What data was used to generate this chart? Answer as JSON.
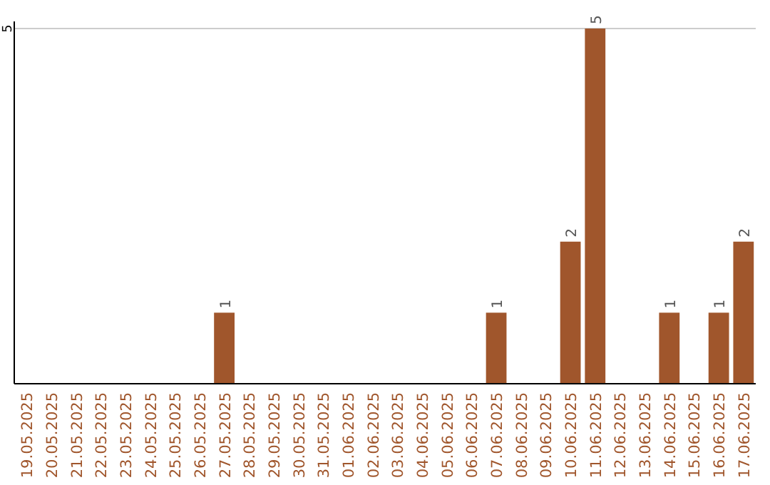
{
  "chart_data": {
    "type": "bar",
    "categories": [
      "19.05.2025",
      "20.05.2025",
      "21.05.2025",
      "22.05.2025",
      "23.05.2025",
      "24.05.2025",
      "25.05.2025",
      "26.05.2025",
      "27.05.2025",
      "28.05.2025",
      "29.05.2025",
      "30.05.2025",
      "31.05.2025",
      "01.06.2025",
      "02.06.2025",
      "03.06.2025",
      "04.06.2025",
      "05.06.2025",
      "06.06.2025",
      "07.06.2025",
      "08.06.2025",
      "09.06.2025",
      "10.06.2025",
      "11.06.2025",
      "12.06.2025",
      "13.06.2025",
      "14.06.2025",
      "15.06.2025",
      "16.06.2025",
      "17.06.2025"
    ],
    "values": [
      0,
      0,
      0,
      0,
      0,
      0,
      0,
      0,
      1,
      0,
      0,
      0,
      0,
      0,
      0,
      0,
      0,
      0,
      0,
      1,
      0,
      0,
      2,
      5,
      0,
      0,
      1,
      0,
      1,
      2
    ],
    "value_labels": [
      null,
      null,
      null,
      null,
      null,
      null,
      null,
      null,
      "1",
      null,
      null,
      null,
      null,
      null,
      null,
      null,
      null,
      null,
      null,
      "1",
      null,
      null,
      "2",
      "5",
      null,
      null,
      "1",
      null,
      "1",
      "2"
    ],
    "color": "#a0562c",
    "ylim": [
      0,
      5
    ],
    "yticks": [
      5
    ],
    "ref_lines": [
      {
        "axis": "y",
        "value": 5,
        "color": "#cccccc"
      }
    ]
  }
}
